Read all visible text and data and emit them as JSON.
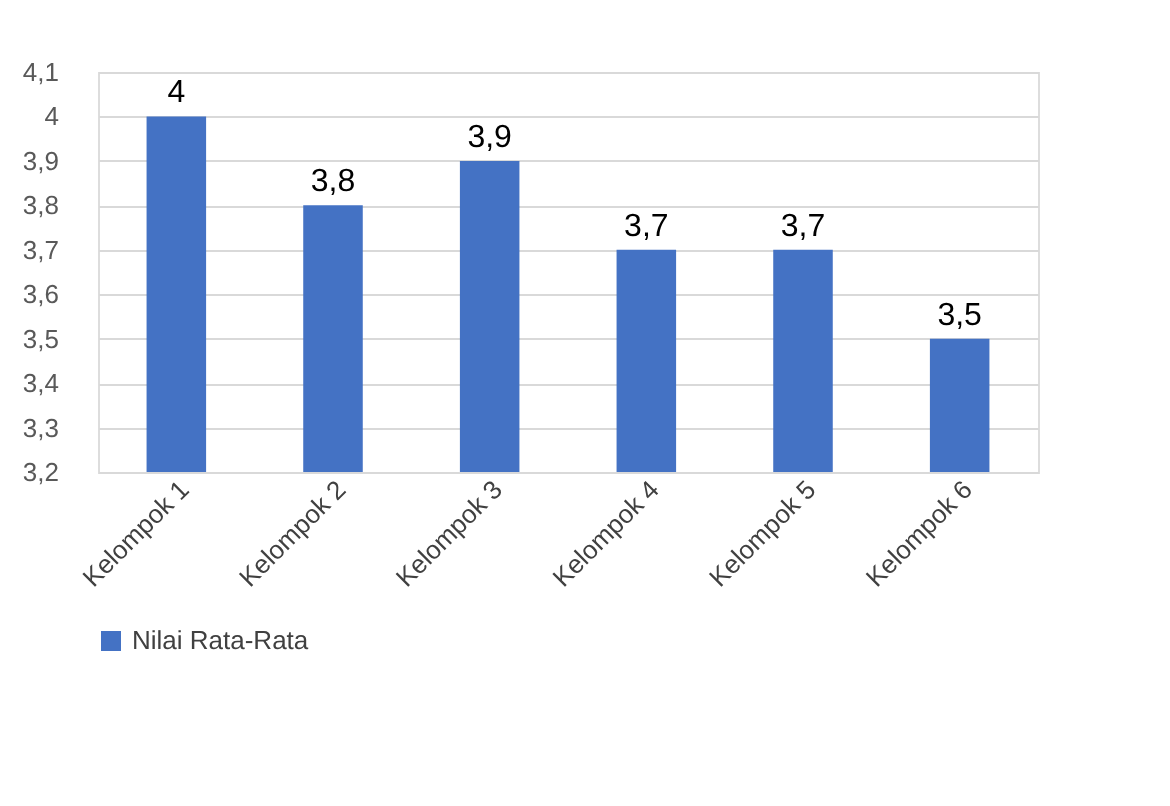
{
  "chart_data": {
    "type": "bar",
    "categories": [
      "Kelompok 1",
      "Kelompok 2",
      "Kelompok 3",
      "Kelompok 4",
      "Kelompok 5",
      "Kelompok 6"
    ],
    "series": [
      {
        "name": "Nilai Rata-Rata",
        "color": "#4472c4",
        "values": [
          4,
          3.8,
          3.9,
          3.7,
          3.7,
          3.5
        ]
      }
    ],
    "value_labels": [
      "4",
      "3,8",
      "3,9",
      "3,7",
      "3,7",
      "3,5"
    ],
    "ylim": [
      3.2,
      4.1
    ],
    "yticks": [
      {
        "value": 3.2,
        "label": "3,2"
      },
      {
        "value": 3.3,
        "label": "3,3"
      },
      {
        "value": 3.4,
        "label": "3,4"
      },
      {
        "value": 3.5,
        "label": "3,5"
      },
      {
        "value": 3.6,
        "label": "3,6"
      },
      {
        "value": 3.7,
        "label": "3,7"
      },
      {
        "value": 3.8,
        "label": "3,8"
      },
      {
        "value": 3.9,
        "label": "3,9"
      },
      {
        "value": 4,
        "label": "4"
      },
      {
        "value": 4.1,
        "label": "4,1"
      }
    ],
    "grid": "y",
    "legend": "bottom"
  }
}
